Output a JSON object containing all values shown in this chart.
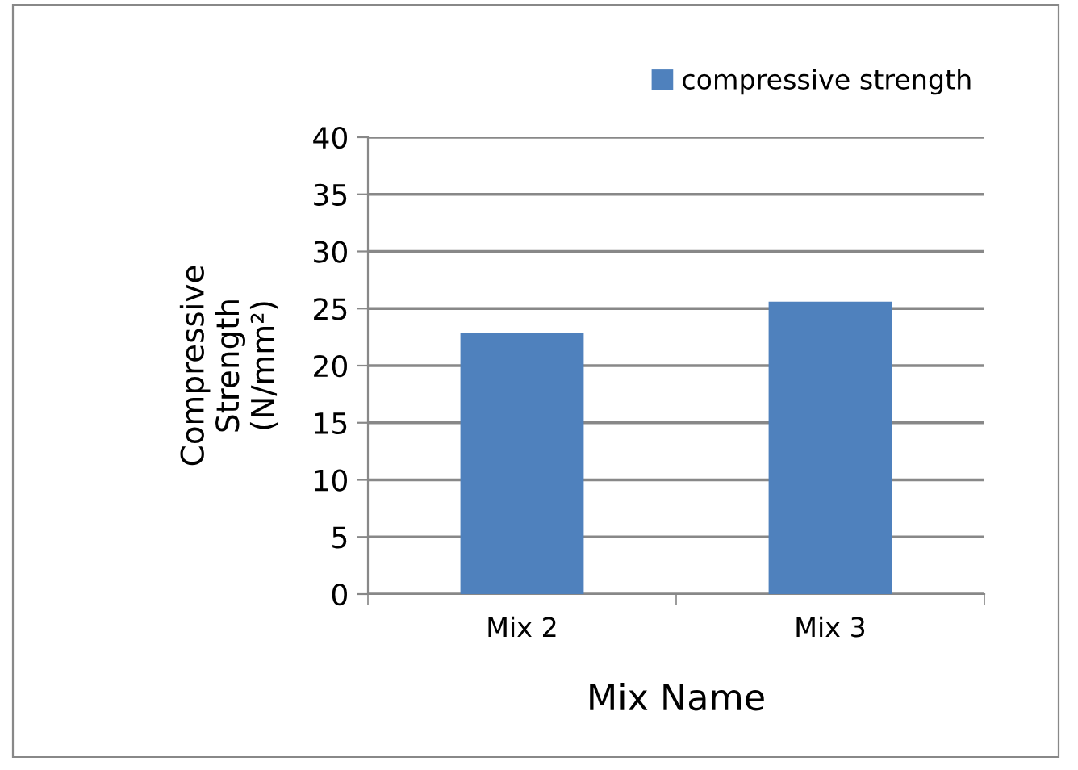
{
  "chart_data": {
    "type": "bar",
    "categories": [
      "Mix 2",
      "Mix 3"
    ],
    "series": [
      {
        "name": "compressive strength",
        "color": "#4f81bd",
        "values": [
          22.9,
          25.6
        ]
      }
    ],
    "xlabel": "Mix Name",
    "ylabel": "Compressive Strength (N/mm²)",
    "ylim": [
      0,
      40
    ],
    "yticks": [
      0,
      5,
      10,
      15,
      20,
      25,
      30,
      35,
      40
    ],
    "grid": "y",
    "legend": "top right"
  }
}
